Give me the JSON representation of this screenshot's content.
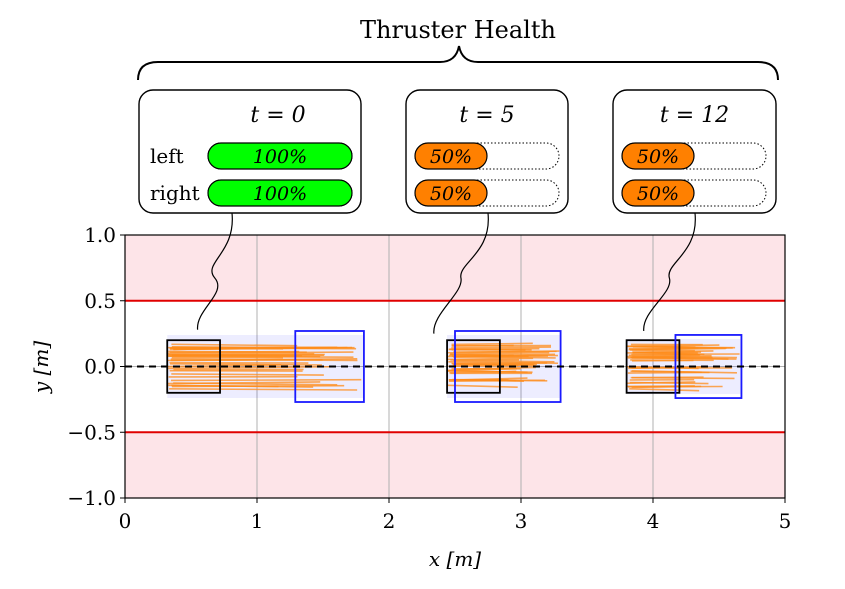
{
  "figure": {
    "title": "Thruster Health"
  },
  "callouts": [
    {
      "time_label": "t = 0",
      "rows": [
        {
          "label": "left",
          "value_text": "100%",
          "health": 1.0
        },
        {
          "label": "right",
          "value_text": "100%",
          "health": 1.0
        }
      ]
    },
    {
      "time_label": "t = 5",
      "rows": [
        {
          "label": "",
          "value_text": "50%",
          "health": 0.5
        },
        {
          "label": "",
          "value_text": "50%",
          "health": 0.5
        }
      ]
    },
    {
      "time_label": "t = 12",
      "rows": [
        {
          "label": "",
          "value_text": "50%",
          "health": 0.5
        },
        {
          "label": "",
          "value_text": "50%",
          "health": 0.5
        }
      ]
    }
  ],
  "colors": {
    "healthy": "#00ff00",
    "degraded": "#ff8000",
    "constraint": "#e00000",
    "forbidden_region": "#fde4e8",
    "current_box": "#000000",
    "predicted_box": "#1a1aff",
    "trajectories": "#ff8c1a",
    "reference": "#000000"
  },
  "chart_data": {
    "type": "line",
    "xlabel": "x [m]",
    "ylabel": "y [m]",
    "xlim": [
      0,
      5
    ],
    "ylim": [
      -1.0,
      1.0
    ],
    "xticks": [
      0,
      1,
      2,
      3,
      4,
      5
    ],
    "xtick_labels": [
      "0",
      "1",
      "2",
      "3",
      "4",
      "5"
    ],
    "yticks": [
      -1.0,
      -0.5,
      0.0,
      0.5,
      1.0
    ],
    "ytick_labels": [
      "−1.0",
      "−0.5",
      "0.0",
      "0.5",
      "1.0"
    ],
    "grid": true,
    "reference_line": {
      "y": 0.0,
      "style": "dashed"
    },
    "constraints": {
      "y_upper": 0.5,
      "y_lower": -0.5
    },
    "snapshots": [
      {
        "time": 0,
        "current_box": {
          "x": [
            0.32,
            0.72
          ],
          "y": [
            -0.2,
            0.2
          ]
        },
        "predicted_box": {
          "x": [
            1.29,
            1.81
          ],
          "y": [
            -0.27,
            0.27
          ]
        }
      },
      {
        "time": 5,
        "current_box": {
          "x": [
            2.44,
            2.84
          ],
          "y": [
            -0.2,
            0.2
          ]
        },
        "predicted_box": {
          "x": [
            2.5,
            3.3
          ],
          "y": [
            -0.27,
            0.27
          ]
        }
      },
      {
        "time": 12,
        "current_box": {
          "x": [
            3.8,
            4.2
          ],
          "y": [
            -0.2,
            0.2
          ]
        },
        "predicted_box": {
          "x": [
            4.17,
            4.67
          ],
          "y": [
            -0.24,
            0.24
          ]
        }
      }
    ]
  }
}
